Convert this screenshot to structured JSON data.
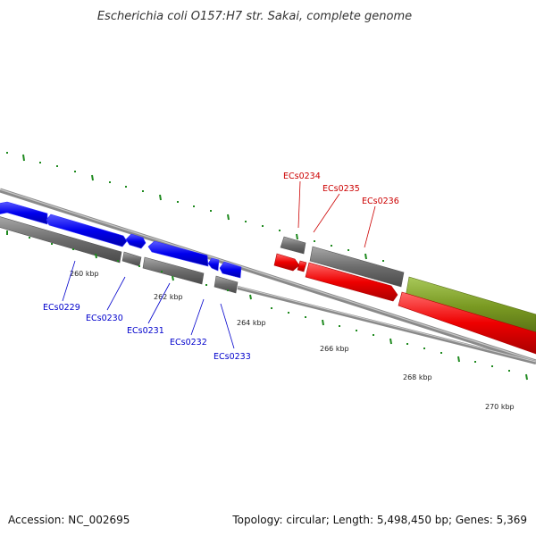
{
  "title": "Escherichia coli O157:H7 str. Sakai, complete genome",
  "footer": {
    "accession": "Accession: NC_002695",
    "summary": "Topology: circular; Length: 5,498,450 bp; Genes: 5,369"
  },
  "colors": {
    "forward_cds": "#0000ee",
    "reverse_cds": "#ee0000",
    "gene_feature": "#6d6d6d",
    "other_feature": "#7a9a22",
    "backbone": "#888888",
    "ticks": "#1f8a1f",
    "forward_label": "#0000cc",
    "reverse_label": "#cc0000"
  },
  "scale_labels": [
    "260 kbp",
    "262 kbp",
    "264 kbp",
    "266 kbp",
    "268 kbp",
    "270 kbp"
  ],
  "gene_labels": {
    "forward": [
      "ECs0229",
      "ECs0230",
      "ECs0231",
      "ECs0232",
      "ECs0233"
    ],
    "reverse": [
      "ECs0234",
      "ECs0235",
      "ECs0236"
    ]
  }
}
